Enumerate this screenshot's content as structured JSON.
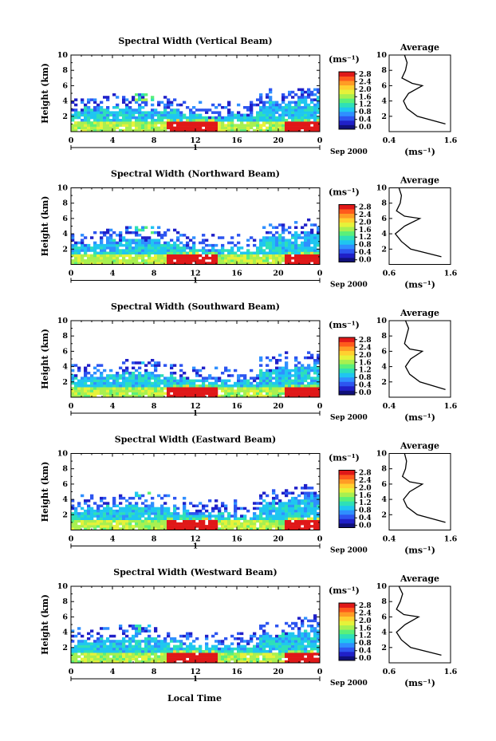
{
  "figure": {
    "xlabel_bottom": "Local Time",
    "date_label": "Sep 2000",
    "day_label": "1"
  },
  "colorbar": {
    "unit": "(ms⁻¹)",
    "tick_labels": [
      "0.0",
      "0.4",
      "0.8",
      "1.2",
      "1.6",
      "2.0",
      "2.4",
      "2.8"
    ],
    "colors": [
      "#10107a",
      "#2020c8",
      "#2d55f0",
      "#2f8fff",
      "#1fc6f0",
      "#2ee0b8",
      "#5af07a",
      "#a8f050",
      "#e6f23a",
      "#ffd030",
      "#ff9c25",
      "#ff5a1c",
      "#e01818"
    ]
  },
  "chart_data": [
    {
      "type": "heatmap",
      "title": "Spectral Width (Vertical Beam)",
      "ylabel": "Height (km)",
      "xlim": [
        0,
        24
      ],
      "ylim": [
        0,
        10
      ],
      "xticks": [
        "0",
        "4",
        "8",
        "12",
        "16",
        "20",
        "0"
      ],
      "yticks": [
        "2",
        "4",
        "6",
        "8",
        "10"
      ],
      "clim": [
        0.0,
        2.8
      ],
      "profile": {
        "title": "Average",
        "xlabel": "(ms⁻¹)",
        "xticks": [
          "0.4",
          "1.6"
        ],
        "xlim": [
          0.4,
          1.6
        ],
        "height": [
          1,
          2,
          3,
          4,
          5,
          6,
          6.3,
          7,
          8,
          9,
          10
        ],
        "value": [
          1.5,
          0.95,
          0.75,
          0.68,
          0.78,
          1.05,
          0.85,
          0.65,
          0.72,
          0.75,
          0.7
        ]
      }
    },
    {
      "type": "heatmap",
      "title": "Spectral Width (Northward Beam)",
      "ylabel": "Height (km)",
      "xlim": [
        0,
        24
      ],
      "ylim": [
        0,
        10
      ],
      "xticks": [
        "0",
        "4",
        "8",
        "12",
        "16",
        "20",
        "0"
      ],
      "yticks": [
        "2",
        "4",
        "6",
        "8",
        "10"
      ],
      "clim": [
        0.0,
        2.8
      ],
      "profile": {
        "title": "Average",
        "xlabel": "(ms⁻¹)",
        "xticks": [
          "0.6",
          "1.6"
        ],
        "xlim": [
          0.6,
          1.6
        ],
        "height": [
          1,
          2,
          3,
          4,
          5,
          6,
          6.3,
          7,
          8,
          9,
          10
        ],
        "value": [
          1.45,
          0.95,
          0.8,
          0.7,
          0.85,
          1.1,
          0.85,
          0.72,
          0.78,
          0.8,
          0.76
        ]
      }
    },
    {
      "type": "heatmap",
      "title": "Spectral Width (Southward Beam)",
      "ylabel": "Height (km)",
      "xlim": [
        0,
        24
      ],
      "ylim": [
        0,
        10
      ],
      "xticks": [
        "0",
        "4",
        "8",
        "12",
        "16",
        "20",
        "0"
      ],
      "yticks": [
        "2",
        "4",
        "6",
        "8",
        "10"
      ],
      "clim": [
        0.0,
        2.8
      ],
      "profile": {
        "title": "Average",
        "xlabel": "(ms⁻¹)",
        "xticks": [
          "0.4",
          "1.6"
        ],
        "xlim": [
          0.4,
          1.6
        ],
        "height": [
          1,
          2,
          3,
          4,
          5,
          6,
          6.3,
          7,
          8,
          9,
          10
        ],
        "value": [
          1.5,
          1.0,
          0.8,
          0.72,
          0.82,
          1.05,
          0.8,
          0.7,
          0.74,
          0.78,
          0.72
        ]
      }
    },
    {
      "type": "heatmap",
      "title": "Spectral Width (Eastward Beam)",
      "ylabel": "Height (km)",
      "xlim": [
        0,
        24
      ],
      "ylim": [
        0,
        10
      ],
      "xticks": [
        "0",
        "4",
        "8",
        "12",
        "16",
        "20",
        "0"
      ],
      "yticks": [
        "2",
        "4",
        "6",
        "8",
        "10"
      ],
      "clim": [
        0.0,
        2.8
      ],
      "profile": {
        "title": "Average",
        "xlabel": "(ms⁻¹)",
        "xticks": [
          "0.4",
          "1.6"
        ],
        "xlim": [
          0.4,
          1.6
        ],
        "height": [
          1,
          2,
          3,
          4,
          5,
          6,
          6.3,
          7,
          8,
          9,
          10
        ],
        "value": [
          1.5,
          0.95,
          0.75,
          0.68,
          0.8,
          1.05,
          0.8,
          0.66,
          0.72,
          0.74,
          0.7
        ]
      }
    },
    {
      "type": "heatmap",
      "title": "Spectral Width (Westward Beam)",
      "ylabel": "Height (km)",
      "xlim": [
        0,
        24
      ],
      "ylim": [
        0,
        10
      ],
      "xticks": [
        "0",
        "4",
        "8",
        "12",
        "16",
        "20",
        "0"
      ],
      "yticks": [
        "2",
        "4",
        "6",
        "8",
        "10"
      ],
      "clim": [
        0.0,
        2.8
      ],
      "profile": {
        "title": "Average",
        "xlabel": "(ms⁻¹)",
        "xticks": [
          "0.6",
          "1.6"
        ],
        "xlim": [
          0.6,
          1.6
        ],
        "height": [
          1,
          2,
          3,
          4,
          5,
          6,
          6.3,
          7,
          8,
          9,
          10
        ],
        "value": [
          1.45,
          0.95,
          0.8,
          0.72,
          0.86,
          1.08,
          0.84,
          0.72,
          0.78,
          0.82,
          0.76
        ]
      }
    }
  ]
}
